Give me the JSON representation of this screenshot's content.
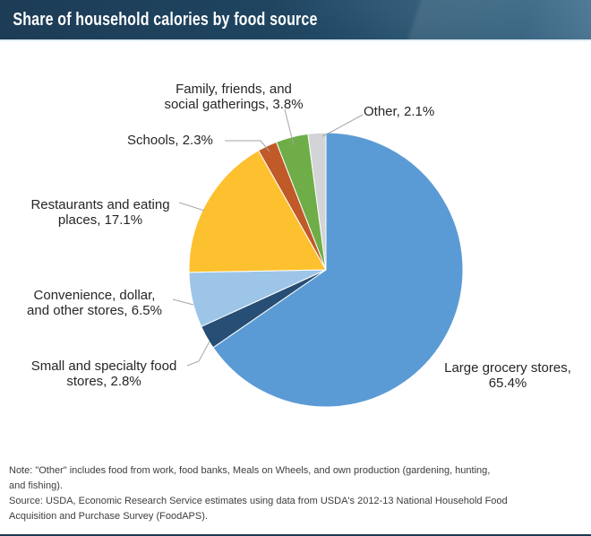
{
  "header": {
    "title": "Share of household calories by food source"
  },
  "chart_data": {
    "type": "pie",
    "title": "Share of household calories by food source",
    "direction": "clockwise",
    "start_angle_deg": 0,
    "total": 100.0,
    "legend_position": "none (direct labels with leader lines)",
    "slices": [
      {
        "label": "Large grocery stores",
        "value": 65.4,
        "color": "#5b9bd5",
        "label_text": "Large grocery stores,\n65.4%"
      },
      {
        "label": "Small and specialty food stores",
        "value": 2.8,
        "color": "#274e74",
        "label_text": "Small and specialty food\nstores, 2.8%"
      },
      {
        "label": "Convenience, dollar, and other stores",
        "value": 6.5,
        "color": "#9dc5e8",
        "label_text": "Convenience, dollar,\nand other stores, 6.5%"
      },
      {
        "label": "Restaurants and eating places",
        "value": 17.1,
        "color": "#fdc02f",
        "label_text": "Restaurants and eating\nplaces, 17.1%"
      },
      {
        "label": "Schools",
        "value": 2.3,
        "color": "#c05a28",
        "label_text": "Schools, 2.3%"
      },
      {
        "label": "Family, friends, and social gatherings",
        "value": 3.8,
        "color": "#6fad49",
        "label_text": "Family, friends, and\nsocial gatherings, 3.8%"
      },
      {
        "label": "Other",
        "value": 2.1,
        "color": "#d2d4d5",
        "label_text": "Other, 2.1%"
      }
    ]
  },
  "footer": {
    "note": "Note: \"Other\" includes food from work, food banks, Meals on Wheels, and own production (gardening, hunting,\nand fishing).",
    "source": "Source: USDA, Economic Research Service estimates using data from USDA's 2012-13 National Household Food\nAcquisition and Purchase Survey (FoodAPS)."
  },
  "colors": {
    "header_bg": "#1f4561",
    "header_text": "#ffffff",
    "leader_line": "#a6a6a6",
    "label_text": "#262626",
    "bottom_rule": "#1c3a52"
  }
}
